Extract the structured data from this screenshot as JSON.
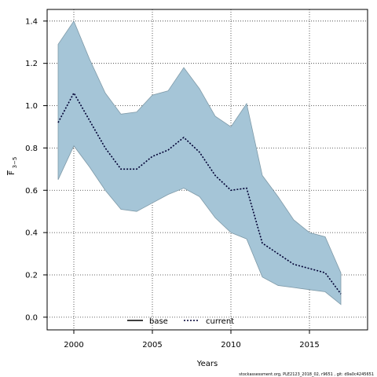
{
  "chart_data": {
    "type": "area",
    "xlabel": "Years",
    "ylabel_main": "F",
    "ylabel_sub": "3−5",
    "xlim": [
      1998.3,
      2018.7
    ],
    "ylim": [
      -0.06,
      1.455
    ],
    "xticks": [
      2000,
      2005,
      2010,
      2015
    ],
    "yticks": [
      0.0,
      0.2,
      0.4,
      0.6,
      0.8,
      1.0,
      1.2,
      1.4
    ],
    "ytick_labels": [
      "0.0",
      "0.2",
      "0.4",
      "0.6",
      "0.8",
      "1.0",
      "1.2",
      "1.4"
    ],
    "grid": true,
    "legend_placement": "bottom-center",
    "x": [
      1999,
      2000,
      2001,
      2002,
      2003,
      2004,
      2005,
      2006,
      2007,
      2008,
      2009,
      2010,
      2011,
      2012,
      2013,
      2014,
      2015,
      2016,
      2017
    ],
    "series": [
      {
        "name": "current",
        "values": [
          0.92,
          1.06,
          0.93,
          0.8,
          0.7,
          0.7,
          0.76,
          0.79,
          0.85,
          0.78,
          0.67,
          0.6,
          0.61,
          0.35,
          0.3,
          0.25,
          0.23,
          0.21,
          0.11
        ],
        "color": "#000033",
        "style": "dotted"
      }
    ],
    "band": {
      "lower": [
        0.65,
        0.81,
        0.71,
        0.6,
        0.51,
        0.5,
        0.54,
        0.58,
        0.61,
        0.57,
        0.47,
        0.4,
        0.37,
        0.19,
        0.15,
        0.14,
        0.13,
        0.12,
        0.06
      ],
      "upper": [
        1.29,
        1.4,
        1.22,
        1.06,
        0.96,
        0.97,
        1.05,
        1.07,
        1.18,
        1.08,
        0.95,
        0.9,
        1.01,
        0.67,
        0.57,
        0.46,
        0.4,
        0.38,
        0.21
      ],
      "color": "#a5c5d7"
    },
    "legend": [
      {
        "label": "base",
        "style": "solid",
        "color": "#000000"
      },
      {
        "label": "current",
        "style": "dotted",
        "color": "#000033"
      }
    ],
    "footer": "stockassessment.org, PLE2123_2018_02, r9651 , git: d9a0c4245651"
  }
}
